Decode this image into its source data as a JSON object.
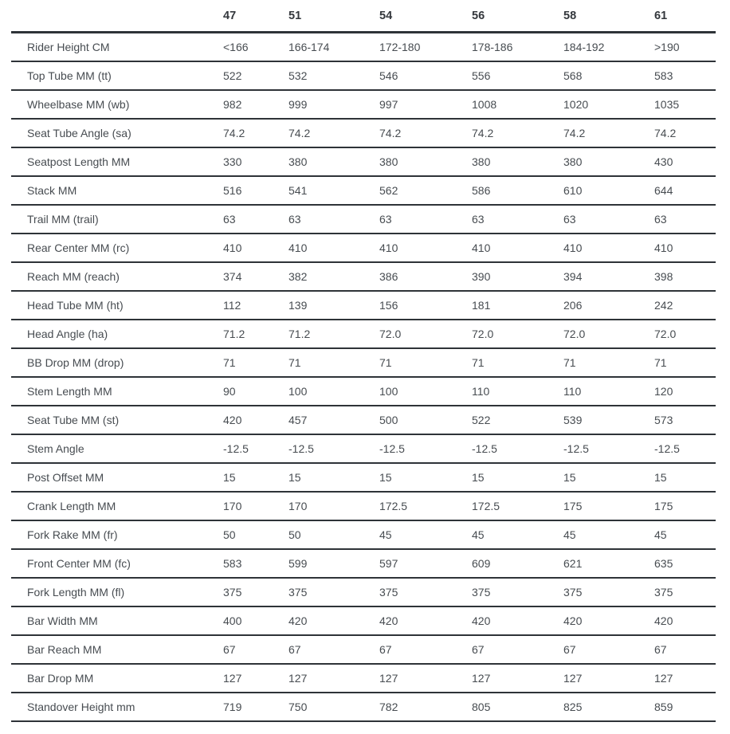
{
  "table": {
    "columns": [
      "47",
      "51",
      "54",
      "56",
      "58",
      "61"
    ],
    "rows": [
      {
        "label": "Rider Height CM",
        "values": [
          "<166",
          "166-174",
          "172-180",
          "178-186",
          "184-192",
          ">190"
        ]
      },
      {
        "label": "Top Tube MM (tt)",
        "values": [
          "522",
          "532",
          "546",
          "556",
          "568",
          "583"
        ]
      },
      {
        "label": "Wheelbase MM (wb)",
        "values": [
          "982",
          "999",
          "997",
          "1008",
          "1020",
          "1035"
        ]
      },
      {
        "label": "Seat Tube Angle (sa)",
        "values": [
          "74.2",
          "74.2",
          "74.2",
          "74.2",
          "74.2",
          "74.2"
        ]
      },
      {
        "label": "Seatpost Length MM",
        "values": [
          "330",
          "380",
          "380",
          "380",
          "380",
          "430"
        ]
      },
      {
        "label": "Stack MM",
        "values": [
          "516",
          "541",
          "562",
          "586",
          "610",
          "644"
        ]
      },
      {
        "label": "Trail MM (trail)",
        "values": [
          "63",
          "63",
          "63",
          "63",
          "63",
          "63"
        ]
      },
      {
        "label": "Rear Center MM (rc)",
        "values": [
          "410",
          "410",
          "410",
          "410",
          "410",
          "410"
        ]
      },
      {
        "label": "Reach MM (reach)",
        "values": [
          "374",
          "382",
          "386",
          "390",
          "394",
          "398"
        ]
      },
      {
        "label": "Head Tube MM (ht)",
        "values": [
          "112",
          "139",
          "156",
          "181",
          "206",
          "242"
        ]
      },
      {
        "label": "Head Angle (ha)",
        "values": [
          "71.2",
          "71.2",
          "72.0",
          "72.0",
          "72.0",
          "72.0"
        ]
      },
      {
        "label": "BB Drop MM (drop)",
        "values": [
          "71",
          "71",
          "71",
          "71",
          "71",
          "71"
        ]
      },
      {
        "label": "Stem Length MM",
        "values": [
          "90",
          "100",
          "100",
          "110",
          "110",
          "120"
        ]
      },
      {
        "label": "Seat Tube MM (st)",
        "values": [
          "420",
          "457",
          "500",
          "522",
          "539",
          "573"
        ]
      },
      {
        "label": "Stem Angle",
        "values": [
          "-12.5",
          "-12.5",
          "-12.5",
          "-12.5",
          "-12.5",
          "-12.5"
        ]
      },
      {
        "label": "Post Offset MM",
        "values": [
          "15",
          "15",
          "15",
          "15",
          "15",
          "15"
        ]
      },
      {
        "label": "Crank Length MM",
        "values": [
          "170",
          "170",
          "172.5",
          "172.5",
          "175",
          "175"
        ]
      },
      {
        "label": "Fork Rake MM (fr)",
        "values": [
          "50",
          "50",
          "45",
          "45",
          "45",
          "45"
        ]
      },
      {
        "label": "Front Center MM (fc)",
        "values": [
          "583",
          "599",
          "597",
          "609",
          "621",
          "635"
        ]
      },
      {
        "label": "Fork Length MM (fl)",
        "values": [
          "375",
          "375",
          "375",
          "375",
          "375",
          "375"
        ]
      },
      {
        "label": "Bar Width MM",
        "values": [
          "400",
          "420",
          "420",
          "420",
          "420",
          "420"
        ]
      },
      {
        "label": "Bar Reach MM",
        "values": [
          "67",
          "67",
          "67",
          "67",
          "67",
          "67"
        ]
      },
      {
        "label": "Bar Drop MM",
        "values": [
          "127",
          "127",
          "127",
          "127",
          "127",
          "127"
        ]
      },
      {
        "label": "Standover Height mm",
        "values": [
          "719",
          "750",
          "782",
          "805",
          "825",
          "859"
        ]
      }
    ],
    "colors": {
      "line": "#2e3338",
      "value_text": "#474c51",
      "header_text": "#33373c"
    }
  }
}
